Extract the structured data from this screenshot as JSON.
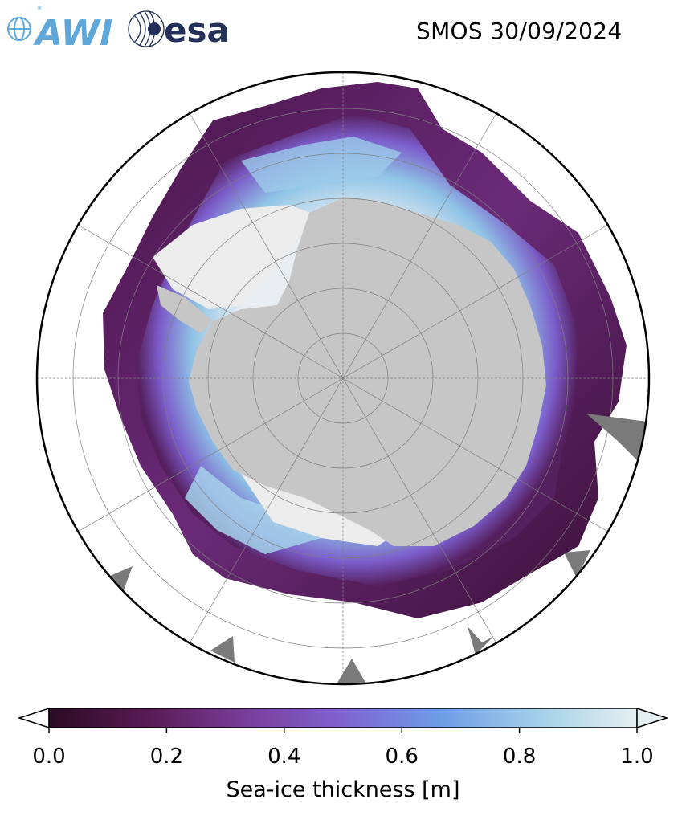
{
  "header": {
    "title": "SMOS 30/09/2024",
    "logos": [
      {
        "name": "awi-logo",
        "text": "AWI"
      },
      {
        "name": "esa-logo",
        "text": "esa"
      }
    ]
  },
  "map": {
    "projection": "south-polar-stereographic",
    "region": "Antarctic sea ice",
    "colors": {
      "land": "#c6c6c6",
      "ice_shelf": "#e8e8e8",
      "no_data": "#7a7a7a",
      "ocean": "#ffffff",
      "graticule": "#7f7f7f",
      "border": "#000000"
    }
  },
  "colorbar": {
    "label": "Sea-ice thickness [m]",
    "min": 0.0,
    "max": 1.0,
    "extend": "both",
    "ticks": [
      "0.0",
      "0.2",
      "0.4",
      "0.6",
      "0.8",
      "1.0"
    ],
    "colormap": [
      "#2b0b24",
      "#5a1a55",
      "#7a3e9c",
      "#7f63cf",
      "#6d9ee6",
      "#a6d2ea",
      "#e6eff0"
    ]
  }
}
